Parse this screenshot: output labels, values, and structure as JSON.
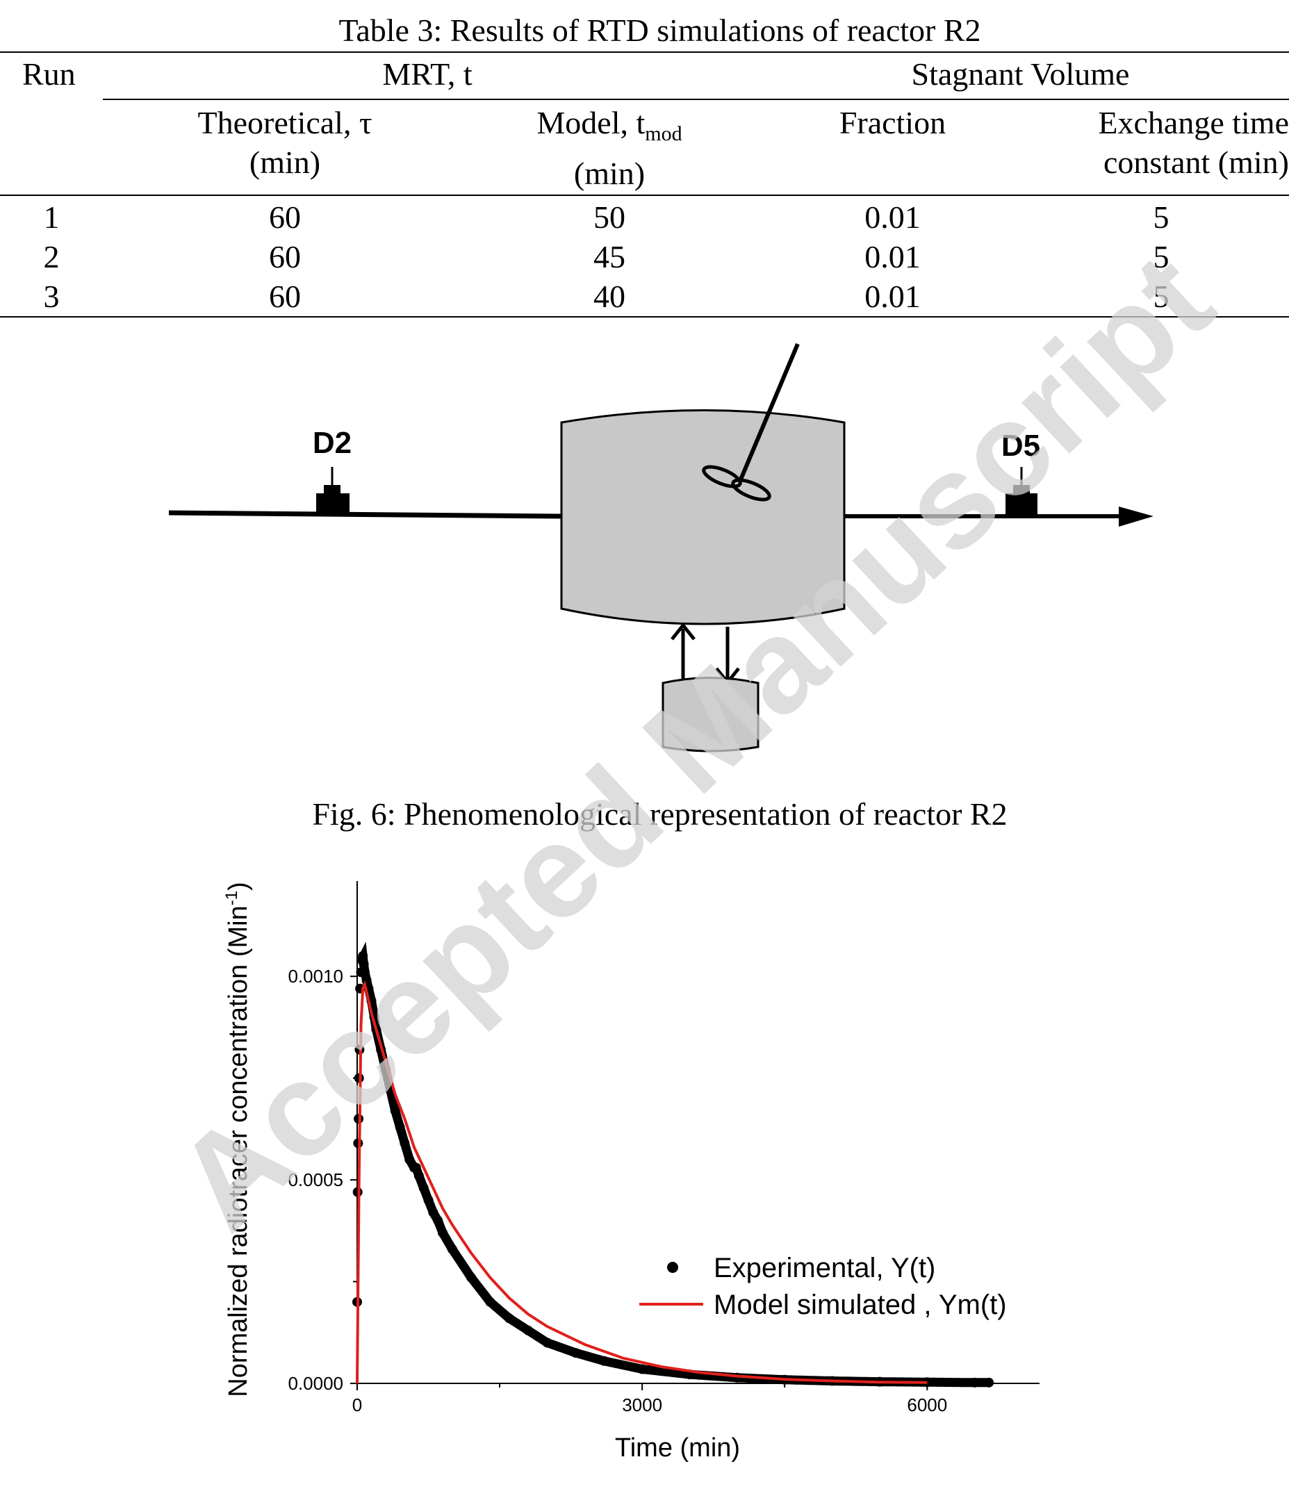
{
  "table": {
    "caption": "Table 3: Results of RTD simulations of reactor R2",
    "headers": {
      "run": "Run",
      "mrt": "MRT, t",
      "stagnant": "Stagnant Volume",
      "theoretical_line1": "Theoretical, τ",
      "theoretical_line2": "(min)",
      "model_prefix": "Model, t",
      "model_sub": "mod",
      "model_line2": "(min)",
      "fraction": "Fraction",
      "exchange_line1": "Exchange time",
      "exchange_line2": "constant (min)"
    },
    "rows": [
      {
        "run": "1",
        "theoretical": "60",
        "model": "50",
        "fraction": "0.01",
        "exchange": "5"
      },
      {
        "run": "2",
        "theoretical": "60",
        "model": "45",
        "fraction": "0.01",
        "exchange": "5"
      },
      {
        "run": "3",
        "theoretical": "60",
        "model": "40",
        "fraction": "0.01",
        "exchange": "5"
      }
    ]
  },
  "diagram": {
    "detector_in": "D2",
    "detector_out": "D5",
    "caption": "Fig. 6: Phenomenological representation of reactor R2",
    "vessel_color": "#c8c8c8"
  },
  "watermark": {
    "text": "Accepted Manuscript",
    "color": "#d3d3d3"
  },
  "chart_data": {
    "type": "scatter",
    "xlabel": "Time (min)",
    "ylabel": "Normalized radiotracer concentration (Min⁻¹)",
    "xlim": [
      0,
      7000
    ],
    "ylim": [
      0,
      0.0012
    ],
    "xticks": [
      "0",
      "3000",
      "6000"
    ],
    "yticks": [
      "0.0000",
      "0.0005",
      "0.0010"
    ],
    "legend_position": "right",
    "series": [
      {
        "name": "Experimental, Y(t)",
        "style": "markers",
        "color": "#000000",
        "x": [
          0,
          5,
          10,
          15,
          20,
          25,
          30,
          40,
          50,
          60,
          70,
          80,
          100,
          120,
          150,
          180,
          200,
          250,
          300,
          350,
          400,
          450,
          500,
          550,
          600,
          620,
          650,
          700,
          750,
          800,
          850,
          900,
          1000,
          1200,
          1400,
          1600,
          1800,
          2000,
          2300,
          2600,
          3000,
          3500,
          4000,
          4500,
          5000,
          5500,
          6000,
          6500,
          6650
        ],
        "y": [
          0.0002,
          0.00047,
          0.00059,
          0.00065,
          0.00075,
          0.00082,
          0.00097,
          0.00101,
          0.00104,
          0.00105,
          0.00103,
          0.00101,
          0.00099,
          0.00097,
          0.00094,
          0.0009,
          0.00087,
          0.00082,
          0.00077,
          0.00072,
          0.00067,
          0.00063,
          0.00059,
          0.00055,
          0.00053,
          0.00053,
          0.00051,
          0.00048,
          0.00045,
          0.00042,
          0.0004,
          0.00037,
          0.00033,
          0.00026,
          0.0002,
          0.00016,
          0.00013,
          0.0001,
          7.5e-05,
          5.5e-05,
          3.5e-05,
          2.2e-05,
          1.4e-05,
          9e-06,
          6e-06,
          4e-06,
          3e-06,
          2e-06,
          2e-06
        ]
      },
      {
        "name": "Model simulated , Ym(t)",
        "style": "line",
        "color": "#e0201c",
        "x": [
          0,
          20,
          40,
          60,
          80,
          100,
          150,
          200,
          300,
          400,
          500,
          600,
          700,
          800,
          900,
          1000,
          1200,
          1400,
          1600,
          1800,
          2000,
          2400,
          2800,
          3200,
          3600,
          4000,
          4500,
          5000,
          5500,
          6000
        ],
        "y": [
          0,
          0.0005,
          0.00088,
          0.00097,
          0.00098,
          0.00096,
          0.00091,
          0.00087,
          0.00079,
          0.00071,
          0.00065,
          0.00058,
          0.00053,
          0.00048,
          0.00043,
          0.00039,
          0.00032,
          0.00026,
          0.00021,
          0.00017,
          0.00014,
          9.5e-05,
          6.2e-05,
          4.1e-05,
          2.7e-05,
          1.8e-05,
          1e-05,
          6e-06,
          3e-06,
          2e-06
        ]
      }
    ]
  }
}
